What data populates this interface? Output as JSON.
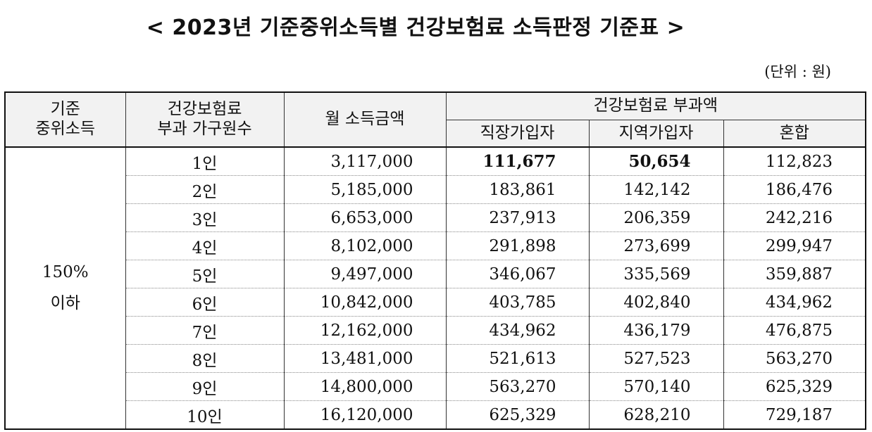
{
  "title": "< 2023년 기준중위소득별 건강보험료 소득판정 기준표 >",
  "unit": "(단위 : 원)",
  "headers": {
    "col1_line1": "기준",
    "col1_line2": "중위소득",
    "col2_line1": "건강보험료",
    "col2_line2": "부과 가구원수",
    "col3": "월 소득금액",
    "group": "건강보험료 부과액",
    "sub1": "직장가입자",
    "sub2": "지역가입자",
    "sub3": "혼합"
  },
  "group_label": {
    "line1": "150%",
    "line2": "이하"
  },
  "rows": [
    {
      "members": "1인",
      "income": "3,117,000",
      "workplace": "111,677",
      "regional": "50,654",
      "mixed": "112,823"
    },
    {
      "members": "2인",
      "income": "5,185,000",
      "workplace": "183,861",
      "regional": "142,142",
      "mixed": "186,476"
    },
    {
      "members": "3인",
      "income": "6,653,000",
      "workplace": "237,913",
      "regional": "206,359",
      "mixed": "242,216"
    },
    {
      "members": "4인",
      "income": "8,102,000",
      "workplace": "291,898",
      "regional": "273,699",
      "mixed": "299,947"
    },
    {
      "members": "5인",
      "income": "9,497,000",
      "workplace": "346,067",
      "regional": "335,569",
      "mixed": "359,887"
    },
    {
      "members": "6인",
      "income": "10,842,000",
      "workplace": "403,785",
      "regional": "402,840",
      "mixed": "434,962"
    },
    {
      "members": "7인",
      "income": "12,162,000",
      "workplace": "434,962",
      "regional": "436,179",
      "mixed": "476,875"
    },
    {
      "members": "8인",
      "income": "13,481,000",
      "workplace": "521,613",
      "regional": "527,523",
      "mixed": "563,270"
    },
    {
      "members": "9인",
      "income": "14,800,000",
      "workplace": "563,270",
      "regional": "570,140",
      "mixed": "625,329"
    },
    {
      "members": "10인",
      "income": "16,120,000",
      "workplace": "625,329",
      "regional": "628,210",
      "mixed": "729,187"
    }
  ]
}
